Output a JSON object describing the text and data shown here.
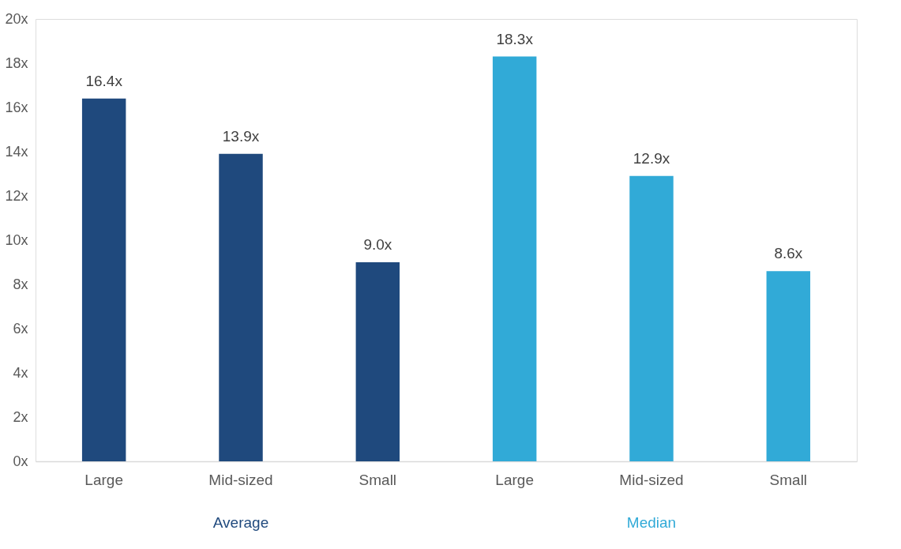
{
  "chart_data": {
    "type": "bar",
    "categories": [
      "Large",
      "Mid-sized",
      "Small",
      "Large",
      "Mid-sized",
      "Small"
    ],
    "series": [
      {
        "name": "Average",
        "color": "#1f497d",
        "values": [
          16.4,
          13.9,
          9.0,
          null,
          null,
          null
        ],
        "value_labels": [
          "16.4x",
          "13.9x",
          "9.0x",
          null,
          null,
          null
        ]
      },
      {
        "name": "Median",
        "color": "#31aad7",
        "values": [
          null,
          null,
          null,
          18.3,
          12.9,
          8.6
        ],
        "value_labels": [
          null,
          null,
          null,
          "18.3x",
          "12.9x",
          "8.6x"
        ]
      }
    ],
    "ylim": [
      0,
      20
    ],
    "yticks": [
      {
        "value": 0,
        "label": "0x"
      },
      {
        "value": 2,
        "label": "2x"
      },
      {
        "value": 4,
        "label": "4x"
      },
      {
        "value": 6,
        "label": "6x"
      },
      {
        "value": 8,
        "label": "8x"
      },
      {
        "value": 10,
        "label": "10x"
      },
      {
        "value": 12,
        "label": "12x"
      },
      {
        "value": 14,
        "label": "14x"
      },
      {
        "value": 16,
        "label": "16x"
      },
      {
        "value": 18,
        "label": "18x"
      },
      {
        "value": 20,
        "label": "20x"
      }
    ],
    "grid": false
  }
}
